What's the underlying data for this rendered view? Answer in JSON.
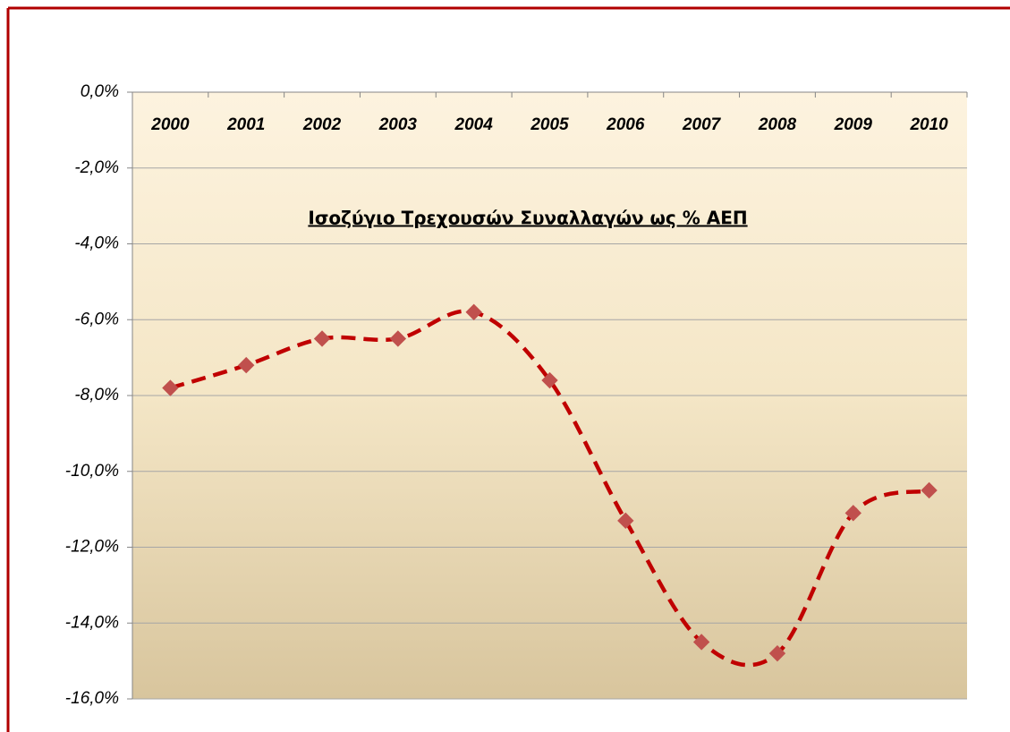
{
  "chart_data": {
    "type": "line",
    "title": "Ισοζύγιο Τρεχουσών Συναλλαγών ως % ΑΕΠ",
    "categories": [
      "2000",
      "2001",
      "2002",
      "2003",
      "2004",
      "2005",
      "2006",
      "2007",
      "2008",
      "2009",
      "2010"
    ],
    "series": [
      {
        "name": "Ισοζύγιο Τρεχουσών Συναλλαγών ως % ΑΕΠ",
        "color": "#c00000",
        "marker_color": "#c0504d",
        "values": [
          -7.8,
          -7.2,
          -6.5,
          -6.5,
          -5.8,
          -7.6,
          -11.3,
          -14.5,
          -14.8,
          -11.1,
          -10.5
        ]
      }
    ],
    "ylim": [
      -16,
      0
    ],
    "yticks": [
      {
        "value": 0,
        "label": "0,0%"
      },
      {
        "value": -2,
        "label": "-2,0%"
      },
      {
        "value": -4,
        "label": "-4,0%"
      },
      {
        "value": -6,
        "label": "-6,0%"
      },
      {
        "value": -8,
        "label": "-8,0%"
      },
      {
        "value": -10,
        "label": "-10,0%"
      },
      {
        "value": -12,
        "label": "-12,0%"
      },
      {
        "value": -14,
        "label": "-14,0%"
      },
      {
        "value": -16,
        "label": "-16,0%"
      }
    ],
    "grid": true
  }
}
